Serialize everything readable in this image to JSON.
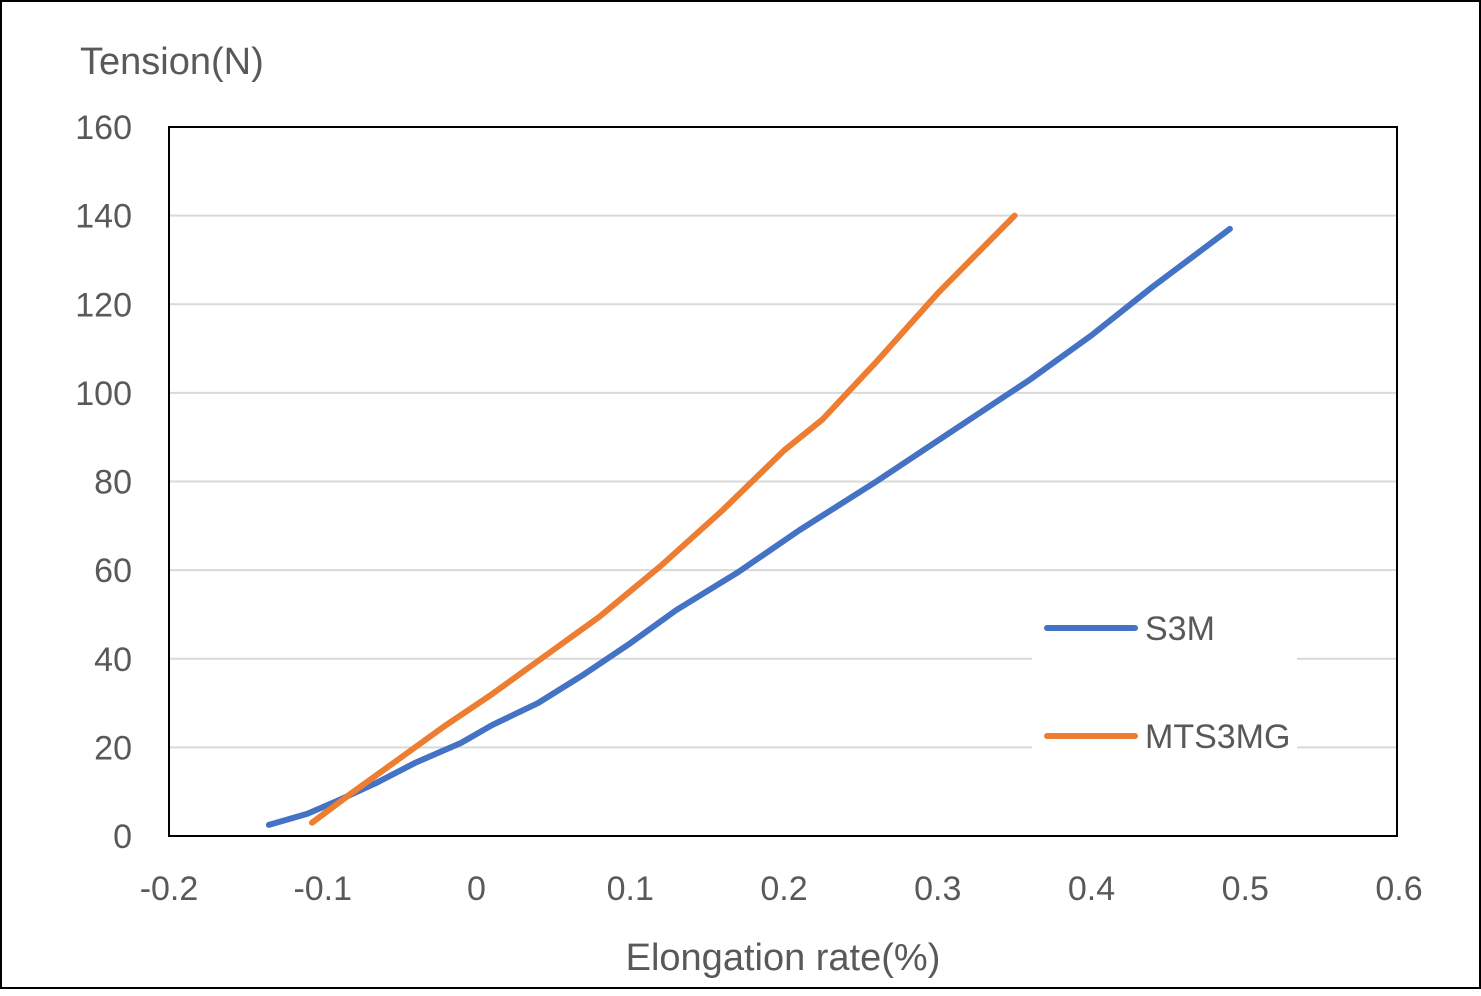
{
  "chart_data": {
    "type": "line",
    "title": "",
    "xlabel": "Elongation rate(%)",
    "ylabel": "Tension(N)",
    "xlim": [
      -0.2,
      0.6
    ],
    "ylim": [
      0,
      160
    ],
    "x_ticks": [
      "-0.2",
      "-0.1",
      "0",
      "0.1",
      "0.2",
      "0.3",
      "0.4",
      "0.5",
      "0.6"
    ],
    "y_ticks": [
      "0",
      "20",
      "40",
      "60",
      "80",
      "100",
      "120",
      "140",
      "160"
    ],
    "grid": "horizontal",
    "legend_position": "right",
    "series": [
      {
        "name": "S3M",
        "color": "#4472C4",
        "points": [
          [
            -0.135,
            2.5
          ],
          [
            -0.11,
            5
          ],
          [
            -0.09,
            8
          ],
          [
            -0.065,
            12
          ],
          [
            -0.04,
            16.5
          ],
          [
            -0.01,
            21
          ],
          [
            0.01,
            25
          ],
          [
            0.04,
            30
          ],
          [
            0.07,
            36.5
          ],
          [
            0.1,
            43.5
          ],
          [
            0.13,
            51
          ],
          [
            0.17,
            59.5
          ],
          [
            0.21,
            69
          ],
          [
            0.26,
            80
          ],
          [
            0.31,
            91.5
          ],
          [
            0.36,
            103
          ],
          [
            0.4,
            113
          ],
          [
            0.44,
            124
          ],
          [
            0.49,
            137
          ]
        ]
      },
      {
        "name": "MTS3MG",
        "color": "#ED7D31",
        "points": [
          [
            -0.107,
            3
          ],
          [
            -0.08,
            10
          ],
          [
            -0.05,
            17.5
          ],
          [
            -0.02,
            25
          ],
          [
            0.01,
            32
          ],
          [
            0.04,
            39.5
          ],
          [
            0.08,
            49.5
          ],
          [
            0.12,
            61
          ],
          [
            0.16,
            73.5
          ],
          [
            0.2,
            87
          ],
          [
            0.225,
            94
          ],
          [
            0.26,
            107
          ],
          [
            0.3,
            122.5
          ],
          [
            0.35,
            140
          ]
        ]
      }
    ]
  }
}
